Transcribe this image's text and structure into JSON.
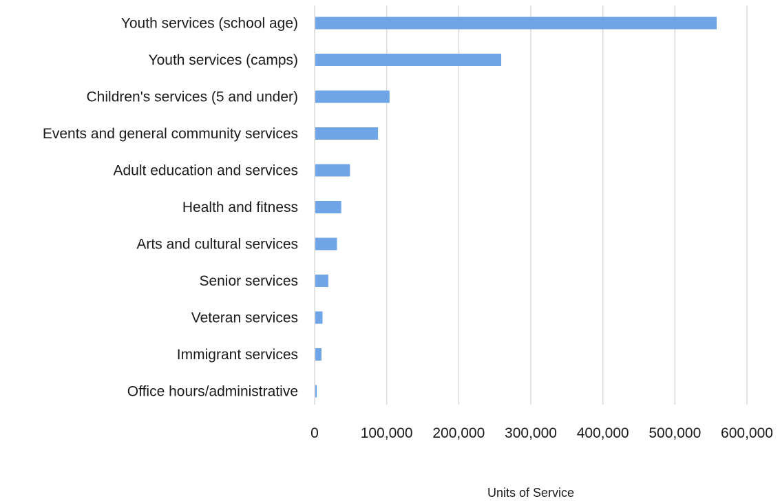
{
  "chart_data": {
    "type": "bar",
    "orientation": "horizontal",
    "categories": [
      "Youth services (school age)",
      "Youth services (camps)",
      "Children's services (5 and under)",
      "Events and general community services",
      "Adult education and services",
      "Health and fitness",
      "Arts and cultural services",
      "Senior services",
      "Veteran services",
      "Immigrant services",
      "Office hours/administrative"
    ],
    "values": [
      558000,
      259000,
      104000,
      88000,
      49000,
      37000,
      31000,
      19000,
      11000,
      9500,
      2500
    ],
    "xlabel": "Units of Service",
    "ylabel": "",
    "xlim": [
      0,
      600000
    ],
    "xticks": [
      "0",
      "100,000",
      "200,000",
      "300,000",
      "400,000",
      "500,000",
      "600,000"
    ],
    "grid": true,
    "bar_color": "#6fa5e6"
  }
}
